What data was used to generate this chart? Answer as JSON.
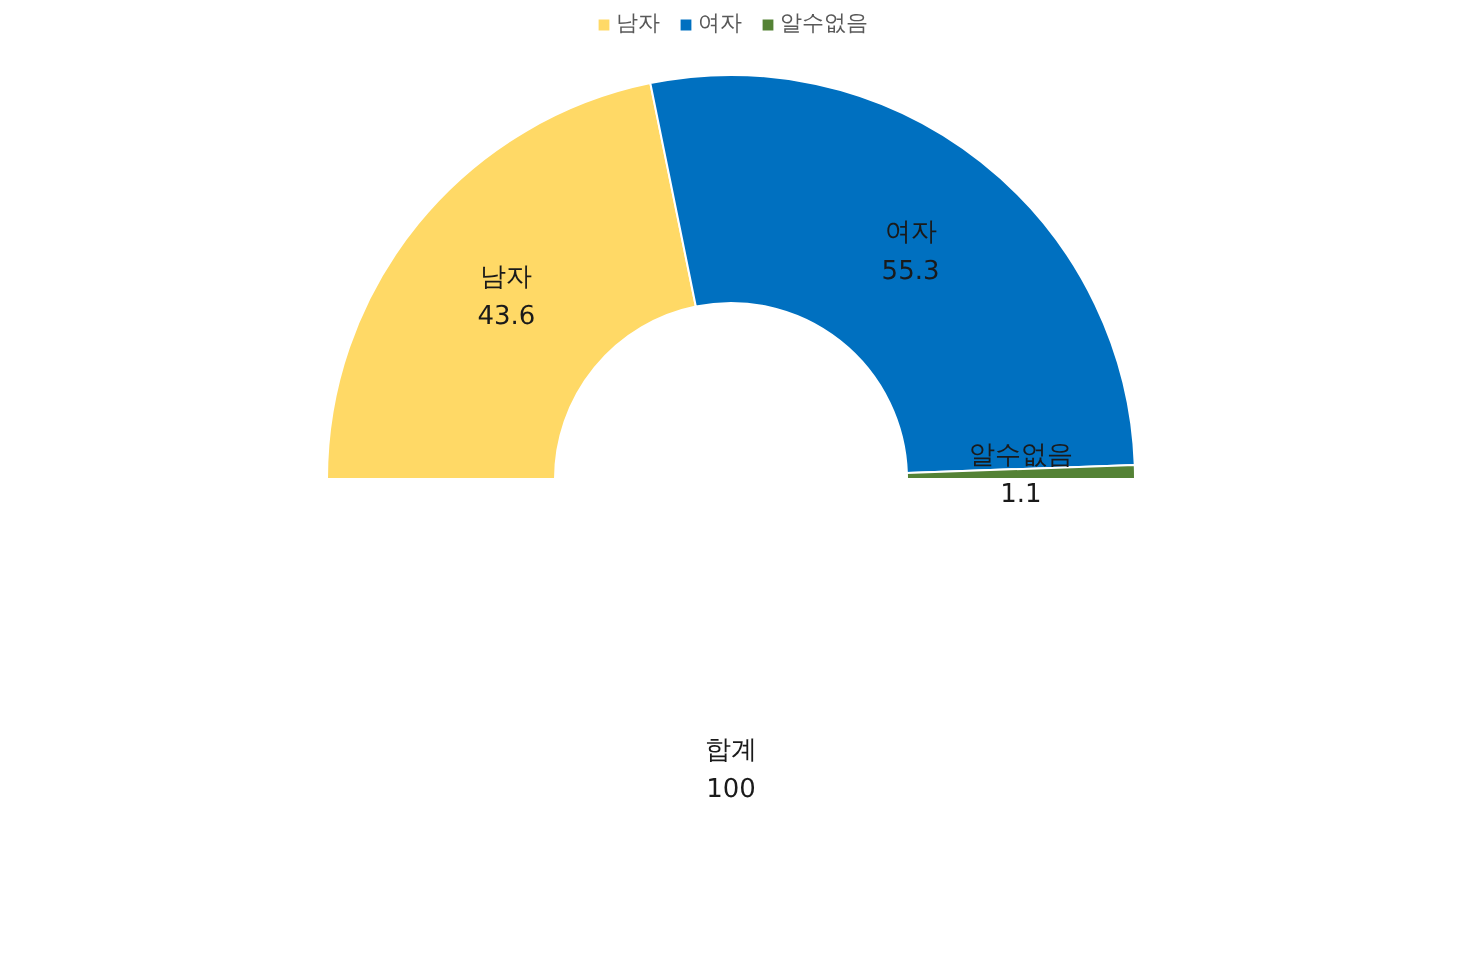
{
  "chart_data": {
    "type": "donut",
    "categories": [
      "남자",
      "여자",
      "알수없음"
    ],
    "values": [
      43.6,
      55.3,
      1.1
    ],
    "colors": [
      "#ffd966",
      "#0070c0",
      "#548235"
    ],
    "data_labels": true,
    "legend": "top",
    "annotations": [
      "합계\n100"
    ]
  }
}
